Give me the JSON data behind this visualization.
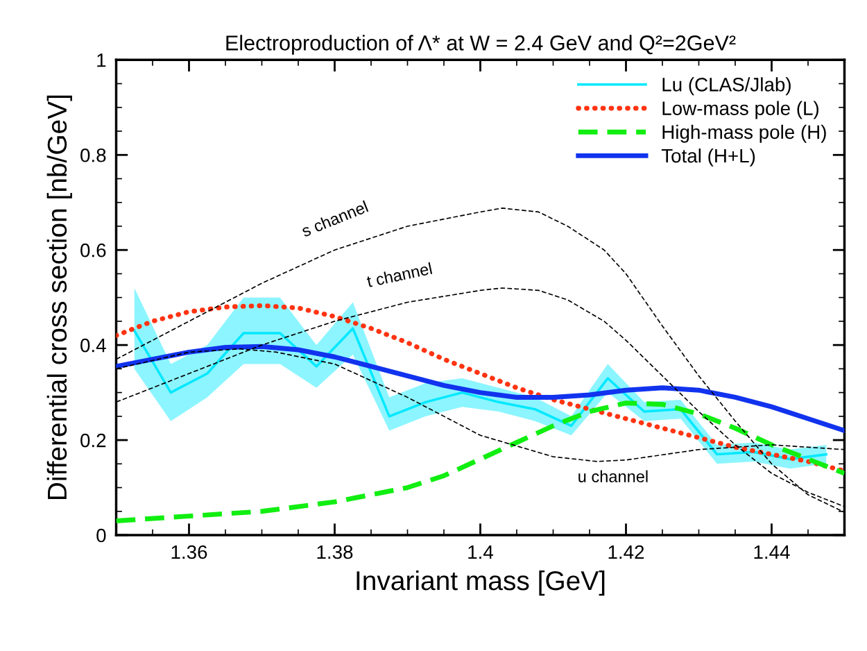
{
  "chart_data": {
    "type": "line",
    "title": "Electroproduction of Λ* at W = 2.4 GeV and Q²=2GeV²",
    "xlabel": "Invariant mass [GeV]",
    "ylabel": "Differential cross section [nb/GeV]",
    "xlim": [
      1.35,
      1.45
    ],
    "xticks": [
      1.36,
      1.38,
      1.4,
      1.42,
      1.44
    ],
    "ylim": [
      0,
      1
    ],
    "yticks": [
      0,
      0.2,
      0.4,
      0.6,
      0.8,
      1
    ],
    "grid": false,
    "legend": "top right",
    "marker": "none",
    "series": [
      {
        "name": "Lu (CLAS/Jlab)",
        "color": "#00e8ff",
        "line_style": "solid",
        "x": [
          1.3525,
          1.3575,
          1.3625,
          1.3675,
          1.3725,
          1.3775,
          1.3825,
          1.3875,
          1.3925,
          1.3975,
          1.4025,
          1.4075,
          1.4125,
          1.4175,
          1.4225,
          1.4275,
          1.4325,
          1.4375,
          1.4425,
          1.4475
        ],
        "values": [
          0.43,
          0.3,
          0.34,
          0.425,
          0.425,
          0.355,
          0.435,
          0.25,
          0.28,
          0.3,
          0.28,
          0.265,
          0.23,
          0.33,
          0.26,
          0.265,
          0.17,
          0.175,
          0.16,
          0.17
        ],
        "lower": [
          0.35,
          0.24,
          0.29,
          0.36,
          0.36,
          0.31,
          0.38,
          0.22,
          0.25,
          0.27,
          0.26,
          0.24,
          0.21,
          0.3,
          0.24,
          0.245,
          0.15,
          0.155,
          0.14,
          0.15
        ],
        "upper": [
          0.52,
          0.36,
          0.4,
          0.5,
          0.5,
          0.4,
          0.49,
          0.29,
          0.32,
          0.33,
          0.31,
          0.29,
          0.25,
          0.36,
          0.28,
          0.285,
          0.19,
          0.195,
          0.18,
          0.19
        ]
      },
      {
        "name": "Low-mass pole (L)",
        "color": "#ff3311",
        "line_style": "dotted",
        "x": [
          1.35,
          1.355,
          1.36,
          1.365,
          1.37,
          1.375,
          1.38,
          1.385,
          1.39,
          1.395,
          1.4,
          1.405,
          1.41,
          1.415,
          1.42,
          1.425,
          1.43,
          1.435,
          1.44,
          1.445,
          1.45
        ],
        "values": [
          0.42,
          0.45,
          0.47,
          0.48,
          0.483,
          0.478,
          0.46,
          0.435,
          0.405,
          0.37,
          0.34,
          0.31,
          0.285,
          0.265,
          0.245,
          0.225,
          0.205,
          0.185,
          0.17,
          0.155,
          0.135
        ]
      },
      {
        "name": "High-mass pole (H)",
        "color": "#11ee11",
        "line_style": "dashed",
        "x": [
          1.35,
          1.36,
          1.37,
          1.38,
          1.39,
          1.395,
          1.4,
          1.405,
          1.41,
          1.415,
          1.42,
          1.425,
          1.43,
          1.435,
          1.44,
          1.445,
          1.45
        ],
        "values": [
          0.03,
          0.04,
          0.05,
          0.07,
          0.1,
          0.125,
          0.16,
          0.195,
          0.23,
          0.26,
          0.278,
          0.275,
          0.255,
          0.225,
          0.19,
          0.16,
          0.13
        ]
      },
      {
        "name": "Total (H+L)",
        "color": "#1133ee",
        "line_style": "solid",
        "x": [
          1.35,
          1.355,
          1.36,
          1.365,
          1.37,
          1.375,
          1.38,
          1.385,
          1.39,
          1.395,
          1.4,
          1.405,
          1.41,
          1.415,
          1.42,
          1.425,
          1.43,
          1.435,
          1.44,
          1.445,
          1.45
        ],
        "values": [
          0.355,
          0.37,
          0.385,
          0.395,
          0.397,
          0.39,
          0.375,
          0.355,
          0.335,
          0.315,
          0.3,
          0.29,
          0.29,
          0.295,
          0.305,
          0.31,
          0.305,
          0.29,
          0.27,
          0.245,
          0.22
        ]
      },
      {
        "color": "#000000",
        "line_style": "dashed",
        "x": [
          1.35,
          1.36,
          1.37,
          1.38,
          1.39,
          1.4,
          1.403,
          1.408,
          1.412,
          1.417,
          1.42,
          1.425,
          1.43,
          1.435,
          1.44,
          1.445,
          1.45
        ],
        "values": [
          0.37,
          0.45,
          0.53,
          0.6,
          0.65,
          0.68,
          0.688,
          0.68,
          0.65,
          0.6,
          0.55,
          0.44,
          0.335,
          0.24,
          0.15,
          0.085,
          0.048
        ]
      },
      {
        "color": "#000000",
        "line_style": "dashed",
        "x": [
          1.35,
          1.36,
          1.37,
          1.38,
          1.39,
          1.4,
          1.403,
          1.408,
          1.412,
          1.417,
          1.42,
          1.425,
          1.43,
          1.435,
          1.44,
          1.445,
          1.45
        ],
        "values": [
          0.28,
          0.34,
          0.4,
          0.45,
          0.49,
          0.515,
          0.52,
          0.515,
          0.495,
          0.45,
          0.41,
          0.335,
          0.26,
          0.19,
          0.13,
          0.09,
          0.06
        ]
      },
      {
        "color": "#000000",
        "line_style": "dashed",
        "x": [
          1.35,
          1.36,
          1.367,
          1.372,
          1.38,
          1.39,
          1.4,
          1.41,
          1.416,
          1.42,
          1.43,
          1.44,
          1.45
        ],
        "values": [
          0.35,
          0.385,
          0.392,
          0.385,
          0.36,
          0.29,
          0.21,
          0.165,
          0.155,
          0.158,
          0.18,
          0.19,
          0.18
        ]
      }
    ],
    "annotations": [
      {
        "text": "s channel",
        "x": 1.38,
        "y": 0.6
      },
      {
        "text": "t channel",
        "x": 1.39,
        "y": 0.49
      },
      {
        "text": "u channel",
        "x": 1.416,
        "y": 0.155
      }
    ]
  }
}
